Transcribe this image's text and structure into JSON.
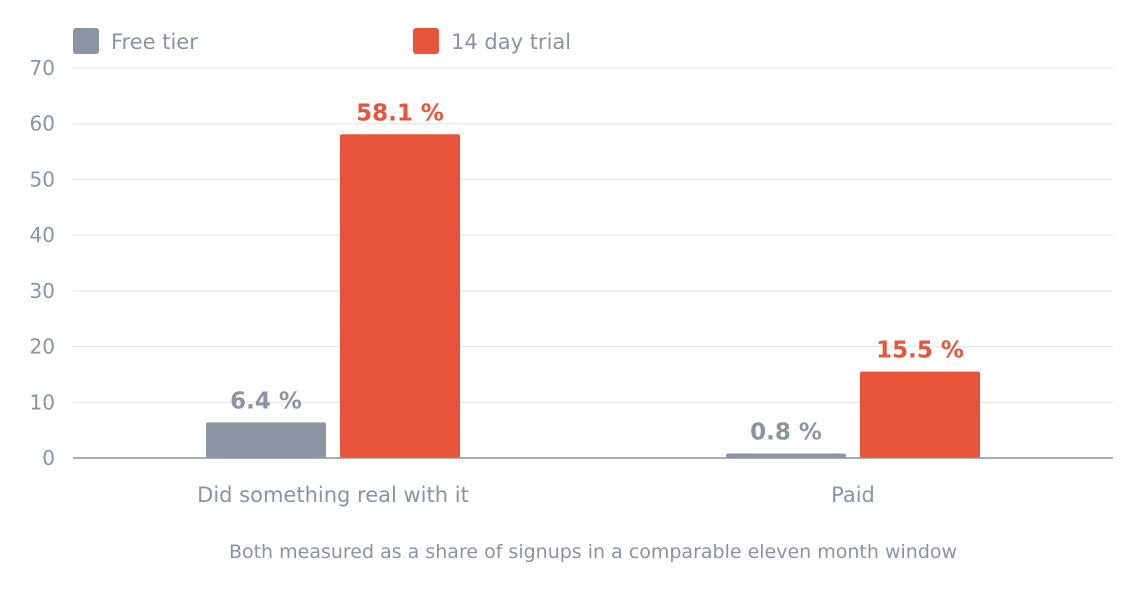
{
  "chart_data": {
    "type": "bar",
    "categories": [
      "Did something real with it",
      "Paid"
    ],
    "series": [
      {
        "name": "Free tier",
        "color": "#8b94a3",
        "values": [
          6.4,
          0.8
        ],
        "labels": [
          "6.4 %",
          "0.8 %"
        ]
      },
      {
        "name": "14 day trial",
        "color": "#e8543a",
        "values": [
          58.1,
          15.5
        ],
        "labels": [
          "58.1 %",
          "15.5 %"
        ]
      }
    ],
    "ylim": [
      0,
      70
    ],
    "yticks": [
      0,
      10,
      20,
      30,
      40,
      50,
      60,
      70
    ],
    "grid": true,
    "legend": "top-left",
    "footnote": "Both measured as a share of signups in a comparable eleven month window"
  },
  "colors": {
    "grid": "#e5e7ea",
    "axis": "#8a93a3",
    "text": "#8a93a3"
  }
}
